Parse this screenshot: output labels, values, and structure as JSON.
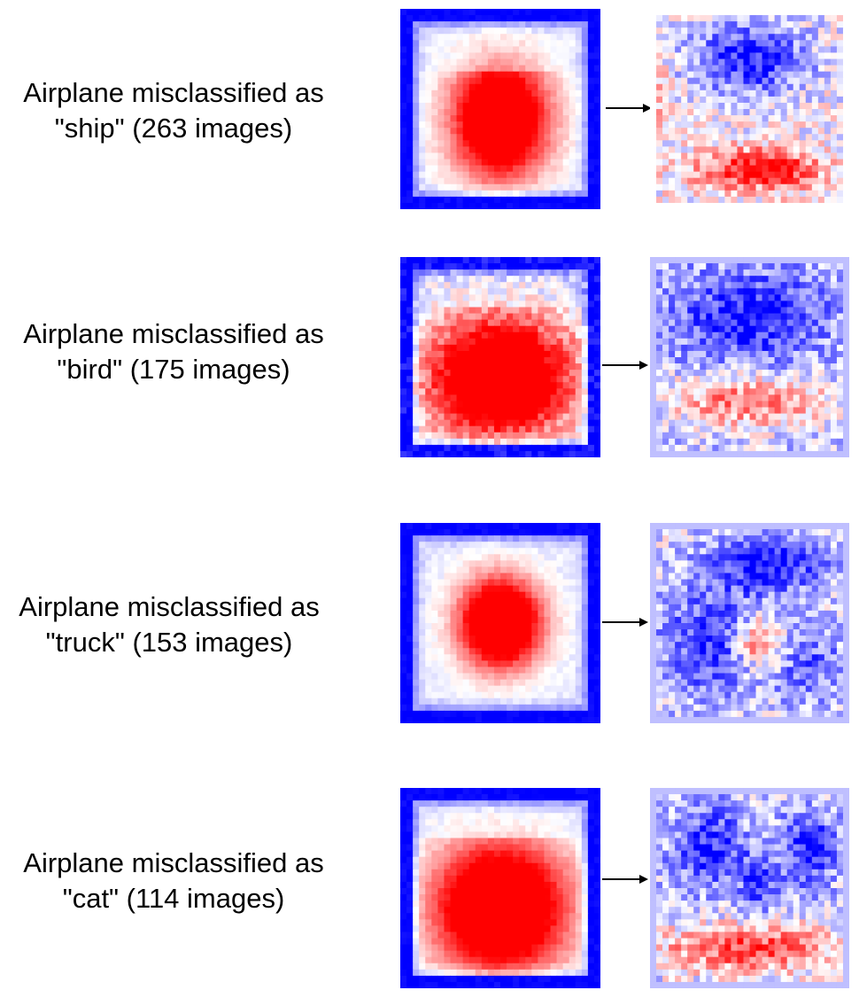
{
  "rows": [
    {
      "title": "Airplane misclassified as",
      "detail": "\"ship\" (263 images)",
      "input_pattern": {
        "kind": "square",
        "blob": "square",
        "seed": 11
      },
      "saliency_pattern": {
        "kind": "ship",
        "seed": 21
      }
    },
    {
      "title": "Airplane misclassified as",
      "detail": "\"bird\" (175 images)",
      "input_pattern": {
        "kind": "square",
        "blob": "wide",
        "seed": 12
      },
      "saliency_pattern": {
        "kind": "bird",
        "seed": 22
      }
    },
    {
      "title": "Airplane misclassified as",
      "detail": "\"truck\" (153 images)",
      "input_pattern": {
        "kind": "square",
        "blob": "round",
        "seed": 13
      },
      "saliency_pattern": {
        "kind": "truck",
        "seed": 23
      }
    },
    {
      "title": "Airplane misclassified as",
      "detail": "\"cat\" (114 images)",
      "input_pattern": {
        "kind": "square",
        "blob": "dome",
        "seed": 14
      },
      "saliency_pattern": {
        "kind": "cat",
        "seed": 24
      }
    }
  ],
  "colors": {
    "negative": "#0000ff",
    "positive": "#ff0000",
    "neutral": "#ffffff",
    "arrow": "#000000"
  }
}
